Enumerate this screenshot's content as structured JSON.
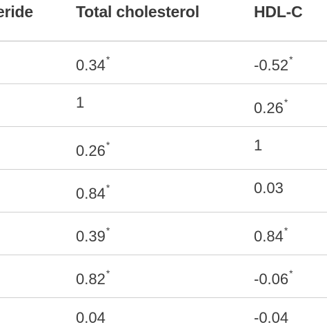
{
  "table": {
    "headers": [
      "eride",
      "Total cholesterol",
      "HDL-C"
    ],
    "rows": [
      {
        "total": "0.34",
        "total_mark": "*",
        "hdl": "-0.52",
        "hdl_mark": "*"
      },
      {
        "total": "1",
        "total_mark": "",
        "hdl": "0.26",
        "hdl_mark": "*"
      },
      {
        "total": "0.26",
        "total_mark": "*",
        "hdl": "1",
        "hdl_mark": ""
      },
      {
        "total": "0.84",
        "total_mark": "*",
        "hdl": "0.03",
        "hdl_mark": ""
      },
      {
        "total": "0.39",
        "total_mark": "*",
        "hdl": "0.84",
        "hdl_mark": "*"
      },
      {
        "total": "0.82",
        "total_mark": "*",
        "hdl": "-0.06",
        "hdl_mark": "*"
      },
      {
        "total": "0.04",
        "total_mark": "",
        "hdl": "-0.04",
        "hdl_mark": ""
      }
    ]
  }
}
